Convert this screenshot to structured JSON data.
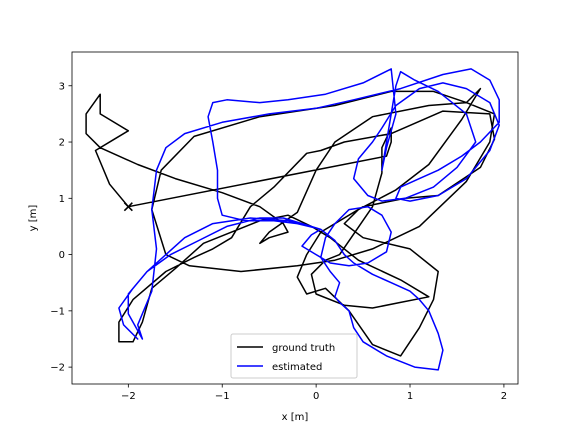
{
  "chart_data": {
    "type": "line",
    "title": "",
    "xlabel": "x [m]",
    "ylabel": "y [m]",
    "xlim": [
      -2.6,
      2.15
    ],
    "ylim": [
      -2.3,
      3.6
    ],
    "xticks": [
      -2,
      -1,
      0,
      1,
      2
    ],
    "yticks": [
      -2,
      -1,
      0,
      1,
      2,
      3
    ],
    "grid": false,
    "legend_position": "lower-center",
    "series": [
      {
        "name": "ground truth",
        "color": "#000000",
        "points": [
          [
            -2.0,
            0.85
          ],
          [
            -2.2,
            1.25
          ],
          [
            -2.35,
            1.85
          ],
          [
            -2.15,
            2.05
          ],
          [
            -2.0,
            2.2
          ],
          [
            -2.3,
            2.5
          ],
          [
            -2.3,
            2.85
          ],
          [
            -2.45,
            2.5
          ],
          [
            -2.45,
            2.15
          ],
          [
            -2.3,
            1.9
          ],
          [
            -1.9,
            1.6
          ],
          [
            -1.5,
            1.35
          ],
          [
            -1.0,
            1.1
          ],
          [
            -0.6,
            0.85
          ],
          [
            -0.35,
            0.55
          ],
          [
            -0.3,
            0.4
          ],
          [
            -0.5,
            0.3
          ],
          [
            -0.6,
            0.2
          ],
          [
            -0.5,
            0.4
          ],
          [
            -0.2,
            0.75
          ],
          [
            0.0,
            1.5
          ],
          [
            0.2,
            2.0
          ],
          [
            0.6,
            2.45
          ],
          [
            1.2,
            2.65
          ],
          [
            1.6,
            2.7
          ],
          [
            1.9,
            2.5
          ],
          [
            1.85,
            2.0
          ],
          [
            1.6,
            1.3
          ],
          [
            1.1,
            0.5
          ],
          [
            0.6,
            0.1
          ],
          [
            0.2,
            -0.1
          ],
          [
            -0.2,
            -0.2
          ],
          [
            -0.8,
            -0.3
          ],
          [
            -1.35,
            -0.2
          ],
          [
            -1.6,
            0.0
          ],
          [
            -1.75,
            0.8
          ],
          [
            -1.65,
            1.5
          ],
          [
            -1.3,
            2.1
          ],
          [
            -0.6,
            2.45
          ],
          [
            0.2,
            2.65
          ],
          [
            0.8,
            2.9
          ],
          [
            1.25,
            2.9
          ],
          [
            1.6,
            2.7
          ],
          [
            1.75,
            2.95
          ],
          [
            1.55,
            2.4
          ],
          [
            1.2,
            1.6
          ],
          [
            0.85,
            1.15
          ],
          [
            0.45,
            0.8
          ],
          [
            0.3,
            0.55
          ],
          [
            0.5,
            0.3
          ],
          [
            1.0,
            0.1
          ],
          [
            1.3,
            -0.3
          ],
          [
            1.25,
            -0.8
          ],
          [
            1.1,
            -1.3
          ],
          [
            0.9,
            -1.8
          ],
          [
            0.6,
            -1.6
          ],
          [
            0.35,
            -1.0
          ],
          [
            0.1,
            -0.6
          ],
          [
            -0.1,
            -0.7
          ],
          [
            -0.2,
            -0.4
          ],
          [
            -0.1,
            0.0
          ],
          [
            0.05,
            0.4
          ],
          [
            0.5,
            0.85
          ],
          [
            0.95,
            1.0
          ],
          [
            1.3,
            1.05
          ],
          [
            1.75,
            1.55
          ],
          [
            1.9,
            2.05
          ],
          [
            1.85,
            2.5
          ],
          [
            1.35,
            2.55
          ],
          [
            0.8,
            2.15
          ],
          [
            0.3,
            2.0
          ],
          [
            0.05,
            1.85
          ],
          [
            -0.1,
            1.8
          ],
          [
            -0.45,
            1.2
          ],
          [
            -0.7,
            0.85
          ],
          [
            -0.9,
            0.3
          ],
          [
            -1.1,
            0.1
          ],
          [
            -1.3,
            -0.05
          ],
          [
            -1.6,
            -0.3
          ],
          [
            -1.95,
            -0.8
          ],
          [
            -2.1,
            -1.2
          ],
          [
            -2.1,
            -1.55
          ],
          [
            -1.95,
            -1.55
          ],
          [
            -1.85,
            -1.2
          ],
          [
            -1.75,
            -0.6
          ],
          [
            -1.5,
            -0.25
          ],
          [
            -1.2,
            0.2
          ],
          [
            -0.6,
            0.6
          ],
          [
            -0.3,
            0.7
          ],
          [
            -0.05,
            0.5
          ],
          [
            0.15,
            0.3
          ],
          [
            0.45,
            -0.1
          ],
          [
            0.9,
            -0.45
          ],
          [
            1.2,
            -0.75
          ],
          [
            0.9,
            -0.85
          ],
          [
            0.6,
            -0.95
          ],
          [
            0.3,
            -0.9
          ],
          [
            0.0,
            -0.7
          ],
          [
            -0.05,
            -0.35
          ],
          [
            0.1,
            -0.1
          ],
          [
            0.25,
            0.0
          ],
          [
            0.6,
            0.85
          ],
          [
            0.7,
            1.45
          ],
          [
            0.7,
            1.9
          ],
          [
            0.8,
            2.25
          ],
          [
            0.8,
            2.0
          ],
          [
            0.75,
            1.75
          ],
          [
            -2.0,
            0.85
          ]
        ]
      },
      {
        "name": "estimated",
        "color": "#0000ff",
        "points": [
          [
            -1.9,
            -1.5
          ],
          [
            -2.05,
            -1.25
          ],
          [
            -2.1,
            -0.95
          ],
          [
            -1.95,
            -0.6
          ],
          [
            -1.8,
            -0.3
          ],
          [
            -1.55,
            0.0
          ],
          [
            -1.25,
            0.25
          ],
          [
            -0.95,
            0.5
          ],
          [
            -0.6,
            0.65
          ],
          [
            -0.35,
            0.65
          ],
          [
            -0.15,
            0.55
          ],
          [
            0.05,
            0.45
          ],
          [
            0.2,
            0.25
          ],
          [
            0.3,
            0.0
          ],
          [
            0.4,
            -0.15
          ],
          [
            0.6,
            -0.35
          ],
          [
            0.8,
            -0.5
          ],
          [
            1.0,
            -0.65
          ],
          [
            1.1,
            -0.8
          ],
          [
            1.2,
            -1.0
          ],
          [
            1.3,
            -1.4
          ],
          [
            1.35,
            -1.7
          ],
          [
            1.3,
            -2.05
          ],
          [
            1.05,
            -2.0
          ],
          [
            0.75,
            -1.8
          ],
          [
            0.5,
            -1.55
          ],
          [
            0.4,
            -1.3
          ],
          [
            0.35,
            -1.0
          ],
          [
            0.25,
            -0.85
          ],
          [
            0.2,
            -0.75
          ],
          [
            0.25,
            -0.5
          ],
          [
            0.15,
            -0.3
          ],
          [
            0.05,
            -0.05
          ],
          [
            0.1,
            0.3
          ],
          [
            0.2,
            0.55
          ],
          [
            0.35,
            0.8
          ],
          [
            0.55,
            0.85
          ],
          [
            0.7,
            0.7
          ],
          [
            0.8,
            0.4
          ],
          [
            0.75,
            0.05
          ],
          [
            0.55,
            -0.15
          ],
          [
            0.35,
            -0.2
          ],
          [
            0.15,
            -0.15
          ],
          [
            0.0,
            0.0
          ],
          [
            -0.15,
            0.15
          ],
          [
            -0.05,
            0.35
          ],
          [
            0.05,
            0.45
          ],
          [
            -0.3,
            0.6
          ],
          [
            -0.7,
            0.65
          ],
          [
            -1.1,
            0.55
          ],
          [
            -1.4,
            0.3
          ],
          [
            -1.6,
            0.0
          ],
          [
            -1.8,
            -0.3
          ],
          [
            -2.0,
            -0.7
          ],
          [
            -2.0,
            -1.05
          ],
          [
            -1.85,
            -1.5
          ],
          [
            -1.9,
            -1.25
          ],
          [
            -1.75,
            -0.65
          ],
          [
            -1.7,
            0.1
          ],
          [
            -1.75,
            0.8
          ],
          [
            -1.7,
            1.5
          ],
          [
            -1.6,
            1.9
          ],
          [
            -1.4,
            2.15
          ],
          [
            -1.0,
            2.35
          ],
          [
            -0.5,
            2.5
          ],
          [
            0.0,
            2.6
          ],
          [
            0.4,
            2.75
          ],
          [
            0.9,
            2.95
          ],
          [
            1.35,
            3.2
          ],
          [
            1.65,
            3.3
          ],
          [
            1.85,
            3.1
          ],
          [
            1.95,
            2.75
          ],
          [
            1.95,
            2.35
          ],
          [
            1.75,
            2.0
          ],
          [
            1.55,
            1.75
          ],
          [
            1.3,
            1.5
          ],
          [
            1.1,
            1.35
          ],
          [
            0.9,
            1.2
          ],
          [
            0.85,
            1.0
          ],
          [
            1.0,
            0.95
          ],
          [
            1.3,
            1.05
          ],
          [
            1.6,
            1.35
          ],
          [
            1.85,
            1.85
          ],
          [
            1.95,
            2.3
          ],
          [
            1.85,
            2.7
          ],
          [
            1.6,
            2.95
          ],
          [
            1.35,
            3.05
          ],
          [
            1.1,
            2.95
          ],
          [
            0.85,
            2.65
          ],
          [
            0.7,
            2.25
          ],
          [
            0.6,
            2.0
          ],
          [
            0.45,
            1.7
          ],
          [
            0.4,
            1.35
          ],
          [
            0.55,
            1.05
          ],
          [
            0.7,
            0.95
          ],
          [
            0.95,
            1.0
          ],
          [
            1.25,
            1.2
          ],
          [
            1.5,
            1.55
          ],
          [
            1.7,
            2.0
          ],
          [
            1.6,
            2.5
          ],
          [
            1.3,
            2.9
          ],
          [
            1.05,
            3.1
          ],
          [
            0.9,
            3.25
          ],
          [
            0.85,
            3.0
          ],
          [
            0.8,
            2.5
          ],
          [
            0.75,
            2.0
          ],
          [
            0.7,
            1.5
          ],
          [
            0.75,
            1.9
          ],
          [
            0.85,
            2.5
          ],
          [
            0.8,
            3.3
          ],
          [
            0.5,
            3.05
          ],
          [
            0.1,
            2.85
          ],
          [
            -0.3,
            2.75
          ],
          [
            -0.6,
            2.7
          ],
          [
            -0.95,
            2.75
          ],
          [
            -1.1,
            2.7
          ],
          [
            -1.15,
            2.45
          ],
          [
            -1.1,
            2.0
          ],
          [
            -1.05,
            1.5
          ],
          [
            -1.05,
            1.0
          ],
          [
            -1.0,
            0.7
          ],
          [
            -0.75,
            0.6
          ],
          [
            -0.45,
            0.6
          ],
          [
            -0.2,
            0.55
          ],
          [
            0.05,
            0.45
          ]
        ]
      }
    ]
  },
  "legend": {
    "items": [
      {
        "label": "ground truth",
        "color": "#000000"
      },
      {
        "label": "estimated",
        "color": "#0000ff"
      }
    ]
  }
}
